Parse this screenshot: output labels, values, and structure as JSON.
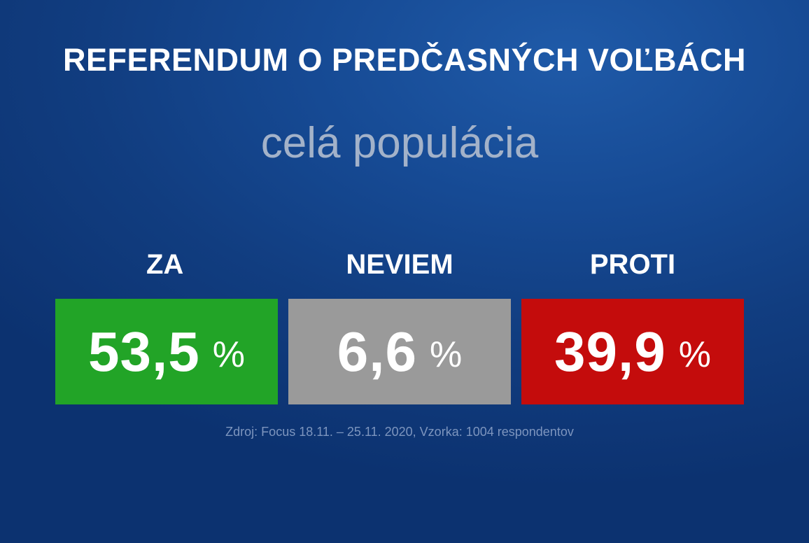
{
  "title": "REFERENDUM O PREDČASNÝCH VOĽBÁCH",
  "subtitle": "celá populácia",
  "results": [
    {
      "label": "ZA",
      "value": "53,5",
      "unit": "%",
      "color": "#22a427"
    },
    {
      "label": "NEVIEM",
      "value": "6,6",
      "unit": "%",
      "color": "#9a9a9a"
    },
    {
      "label": "PROTI",
      "value": "39,9",
      "unit": "%",
      "color": "#c40c0c"
    }
  ],
  "source": "Zdroj: Focus 18.11. – 25.11. 2020, Vzorka: 1004 respondentov"
}
